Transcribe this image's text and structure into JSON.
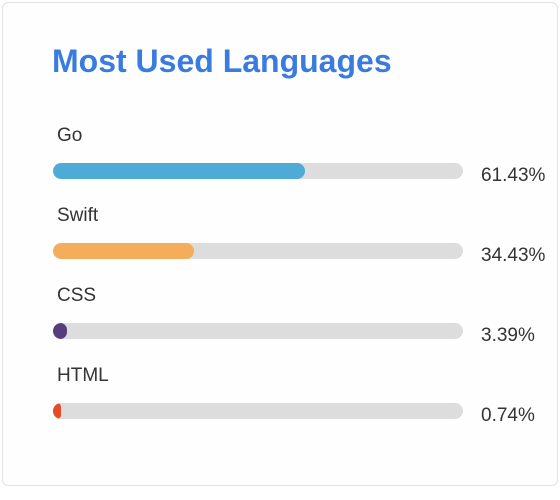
{
  "card": {
    "title": "Most Used Languages"
  },
  "languages": [
    {
      "name": "Go",
      "percent_label": "61.43%",
      "percent": 61.43,
      "color": "#4dabd6"
    },
    {
      "name": "Swift",
      "percent_label": "34.43%",
      "percent": 34.43,
      "color": "#f4ad5a"
    },
    {
      "name": "CSS",
      "percent_label": "3.39%",
      "percent": 3.39,
      "color": "#563d7c"
    },
    {
      "name": "HTML",
      "percent_label": "0.74%",
      "percent": 0.74,
      "color": "#e34c26"
    }
  ],
  "colors": {
    "title": "#3a7be0",
    "track": "#dddddd"
  }
}
